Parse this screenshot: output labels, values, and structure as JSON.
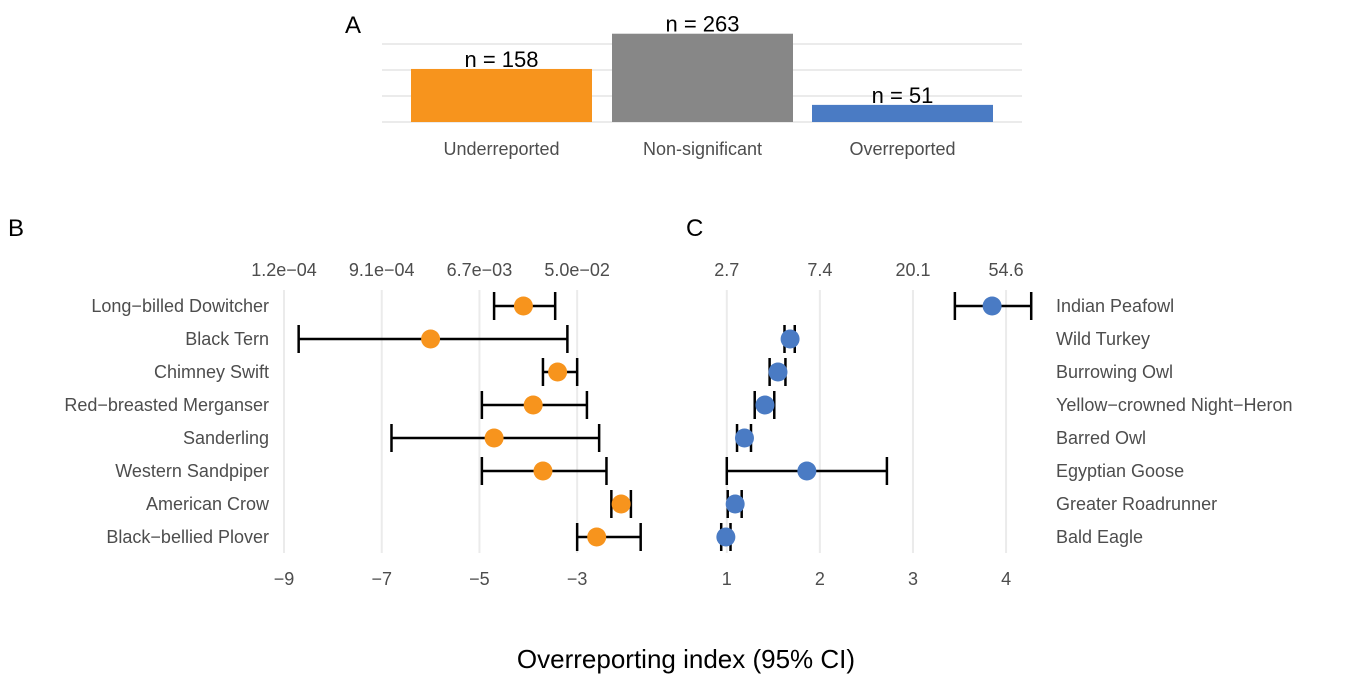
{
  "colors": {
    "under": "#F7941D",
    "non": "#878787",
    "over": "#4A7BC4",
    "grid": "#EBEBEB"
  },
  "chart_data": [
    {
      "panel": "A",
      "type": "bar",
      "categories": [
        "Underreported",
        "Non-significant",
        "Overreported"
      ],
      "values": [
        158,
        263,
        51
      ],
      "labels": [
        "n = 158",
        "n = 263",
        "n = 51"
      ],
      "ylim": [
        0,
        280
      ],
      "grid": true
    },
    {
      "panel": "B",
      "type": "scatter",
      "categories": [
        "Long−billed Dowitcher",
        "Black Tern",
        "Chimney Swift",
        "Red−breasted Merganser",
        "Sanderling",
        "Western Sandpiper",
        "American Crow",
        "Black−bellied Plover"
      ],
      "estimate": [
        -4.1,
        -6.0,
        -3.4,
        -3.9,
        -4.7,
        -3.7,
        -2.1,
        -2.6
      ],
      "lower": [
        -4.7,
        -8.7,
        -3.7,
        -4.95,
        -6.8,
        -4.95,
        -2.3,
        -3.0
      ],
      "upper": [
        -3.45,
        -3.2,
        -3.0,
        -2.8,
        -2.55,
        -2.4,
        -1.9,
        -1.7
      ],
      "xlim": [
        -9,
        -1.55
      ],
      "xticks_bottom": [
        "−9",
        "−7",
        "−5",
        "−3"
      ],
      "xticks_bottom_values": [
        -9,
        -7,
        -5,
        -3
      ],
      "xticks_top": [
        "1.2e−04",
        "9.1e−04",
        "6.7e−03",
        "5.0e−02"
      ],
      "grid": true
    },
    {
      "panel": "C",
      "type": "scatter",
      "categories": [
        "Indian Peafowl",
        "Wild Turkey",
        "Burrowing Owl",
        "Yellow−crowned Night−Heron",
        "Barred Owl",
        "Egyptian Goose",
        "Greater Roadrunner",
        "Bald Eagle"
      ],
      "estimate": [
        3.85,
        1.68,
        1.55,
        1.41,
        1.19,
        1.86,
        1.09,
        0.99
      ],
      "lower": [
        3.45,
        1.62,
        1.46,
        1.3,
        1.11,
        1.0,
        1.01,
        0.94
      ],
      "upper": [
        4.27,
        1.73,
        1.63,
        1.51,
        1.26,
        2.72,
        1.16,
        1.04
      ],
      "xlim": [
        0.68,
        4.3
      ],
      "xticks_bottom": [
        "1",
        "2",
        "3",
        "4"
      ],
      "xticks_bottom_values": [
        1,
        2,
        3,
        4
      ],
      "xticks_top": [
        "2.7",
        "7.4",
        "20.1",
        "54.6"
      ],
      "grid": true
    }
  ],
  "panel_labels": {
    "a": "A",
    "b": "B",
    "c": "C"
  },
  "xlabel": "Overreporting index (95% CI)"
}
